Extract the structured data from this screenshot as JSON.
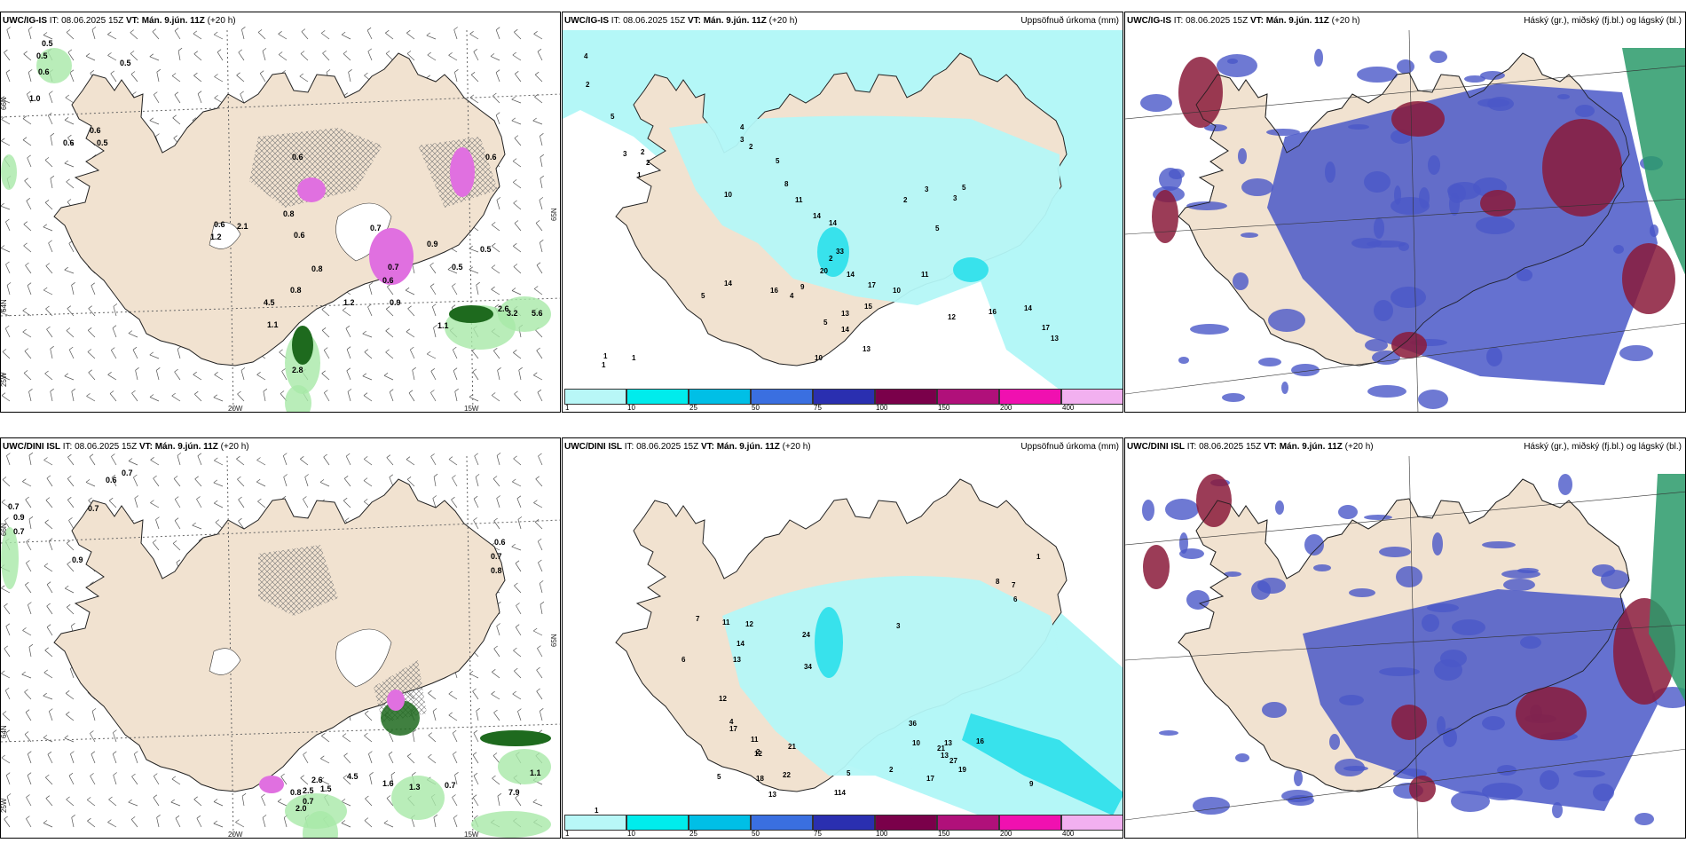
{
  "panels": [
    {
      "title_model": "UWC/IG-IS",
      "title_rest": " IT: 08.06.2025 15Z ",
      "title_vt": "VT: Mán. 9.jún. 11Z",
      "title_lead": " (+20 h)",
      "right_label": ""
    },
    {
      "title_model": "UWC/IG-IS",
      "title_rest": " IT: 08.06.2025 15Z ",
      "title_vt": "VT: Mán. 9.jún. 11Z",
      "title_lead": " (+20 h)",
      "right_label": "Uppsöfnuð úrkoma (mm)"
    },
    {
      "title_model": "UWC/IG-IS",
      "title_rest": " IT: 08.06.2025 15Z ",
      "title_vt": "VT: Mán. 9.jún. 11Z",
      "title_lead": " (+20 h)",
      "right_label": "Háský (gr.), miðský (fj.bl.) og lágský (bl.)"
    },
    {
      "title_model": "UWC/DINI ISL",
      "title_rest": " IT: 08.06.2025 15Z ",
      "title_vt": "VT: Mán. 9.jún. 11Z",
      "title_lead": " (+20 h)",
      "right_label": ""
    },
    {
      "title_model": "UWC/DINI ISL",
      "title_rest": " IT: 08.06.2025 15Z ",
      "title_vt": "VT: Mán. 9.jún. 11Z",
      "title_lead": " (+20 h)",
      "right_label": "Uppsöfnuð úrkoma (mm)"
    },
    {
      "title_model": "UWC/DINI ISL",
      "title_rest": " IT: 08.06.2025 15Z ",
      "title_vt": "VT: Mán. 9.jún. 11Z",
      "title_lead": " (+20 h)",
      "right_label": "Háský (gr.), miðský (fj.bl.) og lágský (bl.)"
    }
  ],
  "grid_labels": {
    "lon_20": "20W",
    "lon_15": "15W",
    "lat_65": "65N",
    "lat_64": "64N",
    "lat_66": "66N",
    "lon_25": "25W"
  },
  "colorbar": {
    "labels": [
      "1",
      "10",
      "25",
      "50",
      "75",
      "100",
      "150",
      "200",
      "400"
    ],
    "colors": [
      "#b8f7f7",
      "#00ecec",
      "#00bfe6",
      "#3a6fe0",
      "#2a2fb0",
      "#7a004a",
      "#b0107a",
      "#f010b0",
      "#f2b0f0"
    ]
  },
  "colors": {
    "land": "#f1e2d0",
    "precip_light": "#b4f7f7",
    "precip_mid": "#38e2ec",
    "wind_green": "#a8e8a8",
    "wind_dark": "#1e6a1e",
    "snow_pink": "#e070e0",
    "cloud_blue": "#4a58c8",
    "cloud_red": "#8a1a3a",
    "cloud_green": "#2a9a6a"
  },
  "top_wind_values": [
    "0.5",
    "0.5",
    "0.6",
    "1.0",
    "0.6",
    "0.5",
    "0.6",
    "0.6",
    "0.8",
    "1.2",
    "0.6",
    "2.1",
    "4.5",
    "0.6",
    "0.8",
    "1.2",
    "0.9",
    "1.1",
    "0.7",
    "0.9",
    "0.5",
    "0.5",
    "0.6",
    "0.8",
    "2.8",
    "5.6",
    "3.2",
    "0.6",
    "0.7",
    "2.6",
    "1.1",
    "0.5"
  ],
  "bottom_wind_values": [
    "0.7",
    "0.9",
    "0.7",
    "0.7",
    "0.6",
    "0.7",
    "0.9",
    "2.5",
    "2.6",
    "2.0",
    "0.7",
    "0.8",
    "1.5",
    "4.5",
    "1.6",
    "1.3",
    "0.7",
    "7.9",
    "1.1",
    "0.6",
    "0.7",
    "0.8"
  ],
  "top_precip_values": [
    "4",
    "2",
    "5",
    "3",
    "2",
    "2",
    "1",
    "4",
    "3",
    "2",
    "10",
    "5",
    "8",
    "11",
    "14",
    "14",
    "33",
    "20",
    "14",
    "13",
    "15",
    "2",
    "5",
    "4",
    "16",
    "14",
    "5",
    "9",
    "14",
    "10",
    "13",
    "17",
    "10",
    "11",
    "12",
    "16",
    "14",
    "17",
    "13",
    "5",
    "3",
    "2",
    "3",
    "5",
    "1",
    "1",
    "1"
  ],
  "bottom_precip_values": [
    "2",
    "4",
    "5",
    "1",
    "11",
    "12",
    "14",
    "13",
    "34",
    "24",
    "6",
    "7",
    "12",
    "17",
    "11",
    "12",
    "18",
    "22",
    "21",
    "36",
    "10",
    "21",
    "27",
    "17",
    "19",
    "13",
    "13",
    "16",
    "9",
    "13",
    "14",
    "5",
    "1",
    "2",
    "3",
    "8",
    "7",
    "6",
    "1"
  ]
}
